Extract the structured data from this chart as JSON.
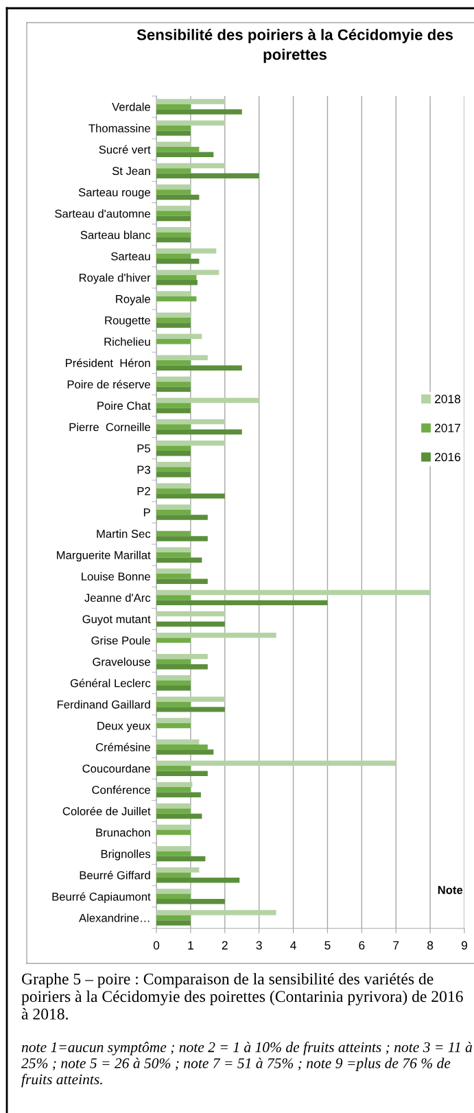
{
  "chart_data": {
    "type": "bar",
    "orientation": "horizontal",
    "title": "Sensibilité des poiriers à la Cécidomyie des poirettes",
    "xlabel": "Note",
    "categories": [
      "Verdale",
      "Thomassine",
      "Sucré vert",
      "St Jean",
      "Sarteau rouge",
      "Sarteau d'automne",
      "Sarteau blanc",
      "Sarteau",
      "Royale d'hiver",
      "Royale",
      "Rougette",
      "Richelieu",
      "Président  Héron",
      "Poire de réserve",
      "Poire Chat",
      "Pierre  Corneille",
      "P5",
      "P3",
      "P2",
      "P",
      "Martin Sec",
      "Marguerite Marillat",
      "Louise Bonne",
      "Jeanne d'Arc",
      "Guyot mutant",
      "Grise Poule",
      "Gravelouse",
      "Général Leclerc",
      "Ferdinand Gaillard",
      "Deux yeux",
      "Crémésine",
      "Coucourdane",
      "Conférence",
      "Colorée de Juillet",
      "Brunachon",
      "Brignolles",
      "Beurré Giffard",
      "Beurré Capiaumont",
      "Alexandrine…"
    ],
    "series": [
      {
        "name": "2018",
        "color": "#b4d3a4",
        "values": [
          2,
          2,
          1,
          2,
          1,
          1,
          1,
          1.75,
          1.83,
          1,
          1,
          1.33,
          1.5,
          1,
          3,
          2,
          2,
          1,
          1,
          1,
          null,
          1,
          1,
          8,
          2,
          3.5,
          1.5,
          1,
          2,
          1,
          1.25,
          7,
          1.05,
          1,
          1,
          1,
          1.25,
          1,
          3.5
        ]
      },
      {
        "name": "2017",
        "color": "#70ad47",
        "values": [
          1,
          1,
          1.25,
          1,
          1,
          1,
          1,
          1,
          1.17,
          1.17,
          1,
          1,
          1,
          1,
          1,
          1,
          1,
          1,
          1,
          1,
          1,
          1,
          1,
          1,
          null,
          1,
          1,
          1,
          1,
          1,
          1.5,
          1,
          1,
          1,
          1,
          1,
          1,
          1,
          1
        ]
      },
      {
        "name": "2016",
        "color": "#5b8f3b",
        "values": [
          2.5,
          1,
          1.67,
          3,
          1.25,
          1,
          1,
          1.25,
          1.2,
          null,
          1,
          null,
          2.5,
          1,
          1,
          2.5,
          1,
          1,
          2,
          1.5,
          1.5,
          1.33,
          1.5,
          5,
          2,
          null,
          1.5,
          1,
          2,
          null,
          1.67,
          1.5,
          1.3,
          1.33,
          null,
          1.43,
          2.43,
          2,
          1
        ]
      }
    ],
    "xlim": [
      0,
      9
    ],
    "xticks": [
      0,
      1,
      2,
      3,
      4,
      5,
      6,
      7,
      8,
      9
    ],
    "grid": "x",
    "legend": "right",
    "annotations": [
      "Graphe 5 – poire : Comparaison de la sensibilité des variétés de poiriers à la Cécidomyie des poirettes (Contarinia pyrivora) de 2016 à 2018.",
      "note 1=aucun symptôme ; note 2 = 1 à 10% de fruits atteints ; note 3 = 11 à 25% ; note 5 = 26 à 50% ; note 7 = 51 à 75% ; note 9 =plus de 76 % de fruits atteints."
    ]
  }
}
